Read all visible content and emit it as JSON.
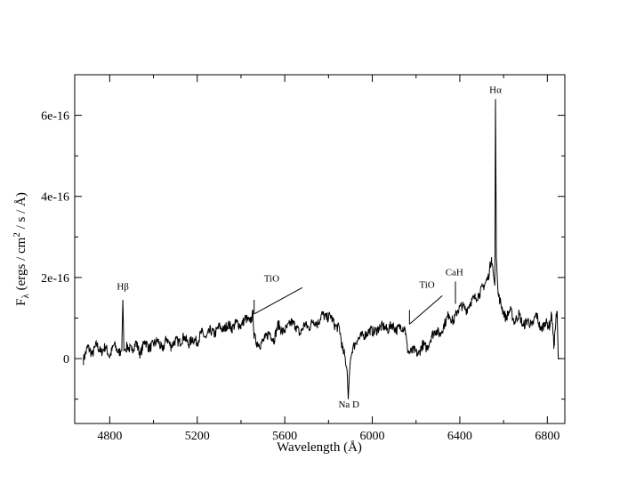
{
  "chart_data": {
    "type": "line",
    "xlabel": "Wavelength (Å)",
    "ylabel": {
      "main": "F",
      "sub": "λ",
      "units_open": " (ergs / cm",
      "sup": "2",
      "units_close": " / s / Å)"
    },
    "xlim": [
      4640,
      6880
    ],
    "ylim": [
      -1.6e-16,
      7e-16
    ],
    "x_ticks": [
      4800,
      5200,
      5600,
      6000,
      6400,
      6800
    ],
    "x_tick_labels": [
      "4800",
      "5200",
      "5600",
      "6000",
      "6400",
      "6800"
    ],
    "y_ticks": [
      0,
      2e-16,
      4e-16,
      6e-16
    ],
    "y_tick_labels": [
      "0",
      "2e-16",
      "4e-16",
      "6e-16"
    ],
    "grid": false,
    "series": [
      {
        "x": [
          4680,
          4700,
          4720,
          4740,
          4760,
          4780,
          4800,
          4820,
          4840,
          4855,
          4860,
          4865,
          4880,
          4900,
          4920,
          4940,
          4960,
          4980,
          5000,
          5020,
          5040,
          5060,
          5080,
          5100,
          5120,
          5140,
          5160,
          5180,
          5200,
          5220,
          5240,
          5260,
          5280,
          5300,
          5320,
          5340,
          5360,
          5380,
          5400,
          5420,
          5440,
          5455,
          5460,
          5470,
          5490,
          5510,
          5530,
          5550,
          5570,
          5590,
          5610,
          5630,
          5650,
          5670,
          5690,
          5710,
          5730,
          5750,
          5770,
          5790,
          5810,
          5830,
          5850,
          5865,
          5875,
          5885,
          5890,
          5895,
          5900,
          5910,
          5930,
          5950,
          5970,
          5990,
          6010,
          6030,
          6050,
          6070,
          6090,
          6110,
          6130,
          6150,
          6160,
          6170,
          6190,
          6210,
          6230,
          6250,
          6270,
          6290,
          6310,
          6330,
          6350,
          6370,
          6390,
          6410,
          6430,
          6450,
          6470,
          6490,
          6510,
          6530,
          6545,
          6555,
          6560,
          6563,
          6567,
          6575,
          6590,
          6610,
          6630,
          6650,
          6670,
          6690,
          6710,
          6730,
          6750,
          6770,
          6790,
          6810,
          6820,
          6830,
          6840,
          6845,
          6850,
          6860
        ],
        "values": [
          -3e-18,
          3e-17,
          1e-17,
          3.5e-17,
          1.5e-17,
          3e-17,
          5e-18,
          3.5e-17,
          1.5e-17,
          2e-17,
          1.45e-16,
          2e-17,
          3e-17,
          2e-17,
          4e-17,
          1e-17,
          4.5e-17,
          2.5e-17,
          3.5e-17,
          4.5e-17,
          2e-17,
          5e-17,
          3e-17,
          4.5e-17,
          4e-17,
          5.5e-17,
          3.5e-17,
          5e-17,
          4e-17,
          6.5e-17,
          5e-17,
          7e-17,
          6e-17,
          8e-17,
          7e-17,
          8.5e-17,
          7.5e-17,
          9e-17,
          8e-17,
          1e-16,
          9e-17,
          1.1e-16,
          5.5e-17,
          4e-17,
          3.5e-17,
          5e-17,
          6.5e-17,
          4.5e-17,
          8.5e-17,
          6.5e-17,
          7.5e-17,
          9e-17,
          8e-17,
          6e-17,
          8.5e-17,
          7.5e-17,
          9.5e-17,
          8.5e-17,
          1.1e-16,
          1e-16,
          1.05e-16,
          8e-17,
          7.5e-17,
          2e-17,
          5e-18,
          -3e-17,
          -1e-16,
          -4e-17,
          -5e-18,
          2.5e-17,
          4.5e-17,
          5.5e-17,
          6e-17,
          7e-17,
          6.5e-17,
          7.5e-17,
          8e-17,
          7e-17,
          8.5e-17,
          7e-17,
          8e-17,
          7.5e-17,
          2.5e-17,
          1.5e-17,
          2e-17,
          1e-17,
          3.5e-17,
          2.5e-17,
          5.5e-17,
          7e-17,
          6e-17,
          8.5e-17,
          1.1e-16,
          9e-17,
          1.2e-16,
          1.3e-16,
          1.2e-16,
          1.4e-16,
          1.5e-16,
          1.6e-16,
          1.8e-16,
          2e-16,
          2.5e-16,
          2e-16,
          1.8e-16,
          6.4e-16,
          2.5e-16,
          1.6e-16,
          1.3e-16,
          1e-16,
          1.2e-16,
          9e-17,
          1.1e-16,
          8e-17,
          9.5e-17,
          8e-17,
          1.1e-16,
          7e-17,
          9e-17,
          8e-17,
          1.1e-16,
          3e-17,
          1e-16,
          1.15e-16,
          0.0,
          0.0
        ]
      }
    ],
    "annotations": [
      {
        "label": "Hβ",
        "type": "text",
        "x": 4860,
        "y": 1.7e-16
      },
      {
        "label": "TiO",
        "type": "bracket",
        "x_start": 5460,
        "x_end": 5680,
        "y_start": 1.45e-16,
        "y_end": 1.75e-16,
        "tick_drop": 3.5e-17,
        "text_x": 5540,
        "text_y": 1.9e-16
      },
      {
        "label": "Na D",
        "type": "text",
        "x": 5893,
        "y": -1.2e-16
      },
      {
        "label": "TiO",
        "type": "bracket",
        "x_start": 6170,
        "x_end": 6320,
        "y_start": 1.2e-16,
        "y_end": 1.55e-16,
        "tick_drop": 3.5e-17,
        "text_x": 6250,
        "text_y": 1.75e-16
      },
      {
        "label": "CaH",
        "type": "tick",
        "x": 6380,
        "y_start": 1.35e-16,
        "y_end": 1.9e-16,
        "text_x": 6375,
        "text_y": 2.05e-16
      },
      {
        "label": "Hα",
        "type": "text",
        "x": 6563,
        "y": 6.55e-16
      }
    ]
  }
}
